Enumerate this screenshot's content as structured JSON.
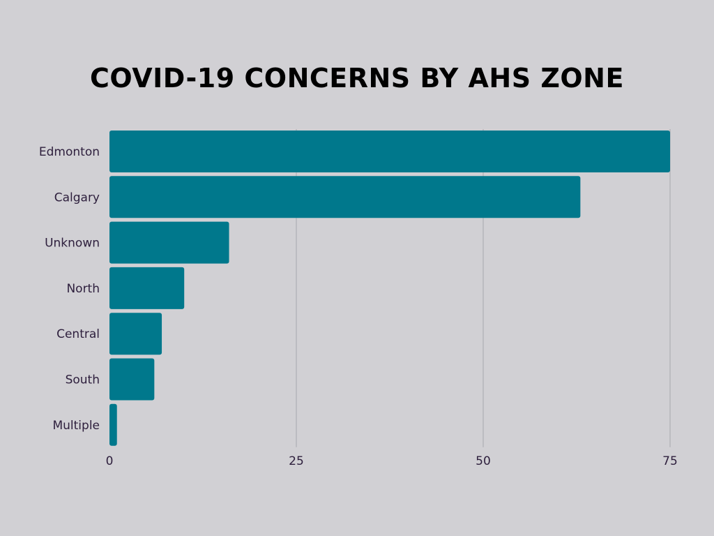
{
  "colors": {
    "background": "#d1d0d4",
    "bar": "#00788c",
    "grid": "#a8a8ae",
    "title": "#000000",
    "label": "#2d1e3c"
  },
  "chart_data": {
    "type": "bar",
    "orientation": "horizontal",
    "title": "COVID-19 CONCERNS BY AHS ZONE",
    "xlabel": "",
    "ylabel": "",
    "categories": [
      "Edmonton",
      "Calgary",
      "Unknown",
      "North",
      "Central",
      "South",
      "Multiple"
    ],
    "values": [
      75,
      63,
      16,
      10,
      7,
      6,
      1
    ],
    "xlim": [
      0,
      75
    ],
    "xticks": [
      0,
      25,
      50,
      75
    ],
    "grid": "vertical"
  }
}
